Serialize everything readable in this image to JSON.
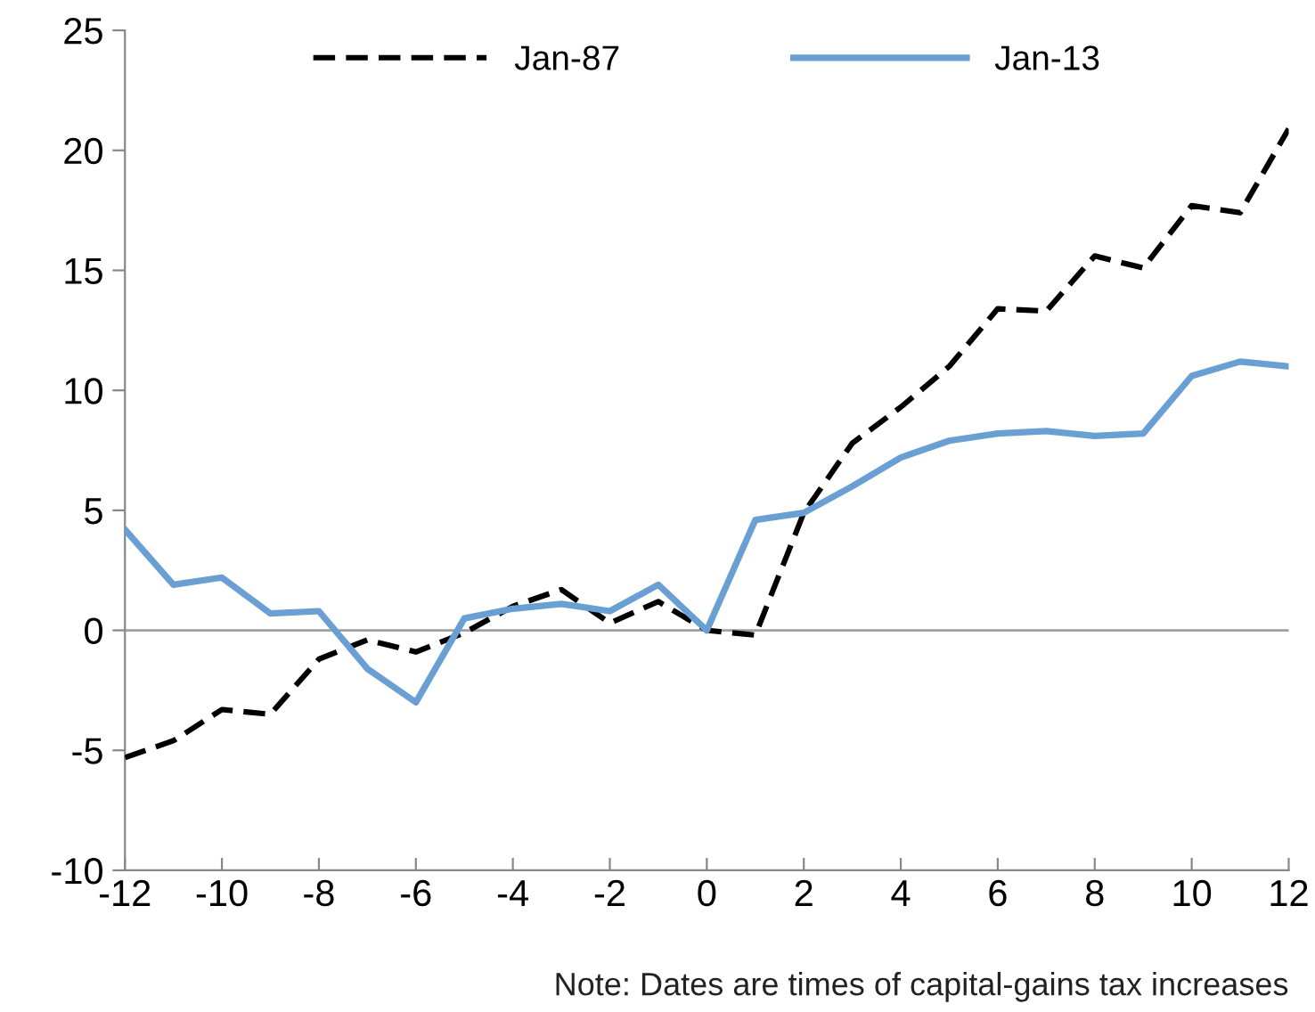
{
  "chart_data": {
    "type": "line",
    "x": [
      -12,
      -11,
      -10,
      -9,
      -8,
      -7,
      -6,
      -5,
      -4,
      -3,
      -2,
      -1,
      0,
      1,
      2,
      3,
      4,
      5,
      6,
      7,
      8,
      9,
      10,
      11,
      12
    ],
    "series": [
      {
        "name": "Jan-87",
        "color": "#000000",
        "line_style": "dashed",
        "values": [
          -5.3,
          -4.6,
          -3.3,
          -3.5,
          -1.2,
          -0.4,
          -0.9,
          -0.1,
          1.0,
          1.7,
          0.3,
          1.2,
          0,
          -0.2,
          4.9,
          7.8,
          9.3,
          11.0,
          13.4,
          13.3,
          15.6,
          15.1,
          17.7,
          17.4,
          20.9
        ]
      },
      {
        "name": "Jan-13",
        "color": "#6a9fd4",
        "line_style": "solid",
        "values": [
          4.2,
          1.9,
          2.2,
          0.7,
          0.8,
          -1.6,
          -3.0,
          0.5,
          0.9,
          1.1,
          0.8,
          1.9,
          0,
          4.6,
          4.9,
          6.0,
          7.2,
          7.9,
          8.2,
          8.3,
          8.1,
          8.2,
          10.6,
          11.2,
          11.0
        ]
      }
    ],
    "xlim": [
      -12,
      12
    ],
    "xticks": [
      -12,
      -10,
      -8,
      -6,
      -4,
      -2,
      0,
      2,
      4,
      6,
      8,
      10,
      12
    ],
    "ylim": [
      -10,
      25
    ],
    "yticks": [
      -10,
      -5,
      0,
      5,
      10,
      15,
      20,
      25
    ],
    "ref_lines": [
      {
        "axis": "y",
        "value": 0,
        "color": "#a0a0a0"
      }
    ],
    "grid": false,
    "legend": "top",
    "marker": "none",
    "annotations": [
      "Note: Dates are times of capital-gains tax increases"
    ]
  }
}
